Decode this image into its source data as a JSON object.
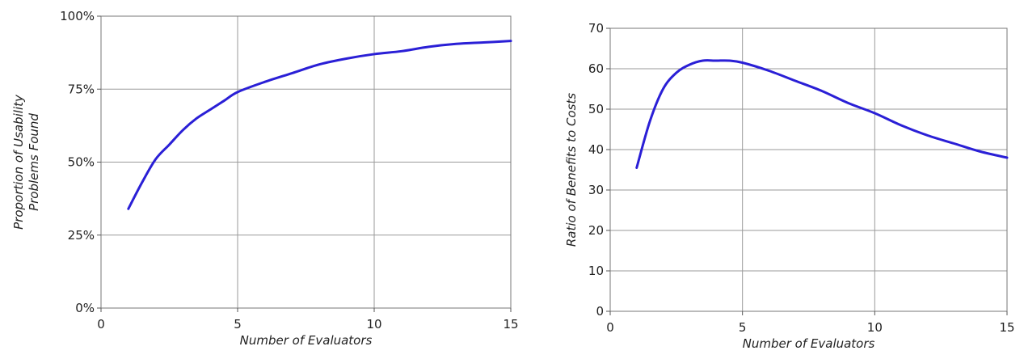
{
  "chart_data": [
    {
      "type": "line",
      "xlabel": "Number of Evaluators",
      "ylabel_lines": [
        "Proportion of Usability",
        "Problems Found"
      ],
      "xlim": [
        0,
        15
      ],
      "ylim": [
        0,
        100
      ],
      "xticks": [
        0,
        5,
        10,
        15
      ],
      "yticks": [
        0,
        25,
        50,
        75,
        100
      ],
      "ytick_labels": [
        "0%",
        "25%",
        "50%",
        "75%",
        "100%"
      ],
      "grid": true,
      "series": [
        {
          "color": "#2a1fd6",
          "x": [
            1,
            1.5,
            2,
            2.5,
            3,
            3.5,
            4,
            4.5,
            5,
            6,
            7,
            8,
            9,
            10,
            11,
            12,
            13,
            14,
            15
          ],
          "y": [
            34,
            43,
            51,
            56,
            61,
            65,
            68,
            71,
            74,
            77.5,
            80.5,
            83.5,
            85.5,
            87,
            88,
            89.5,
            90.5,
            91,
            91.5
          ]
        }
      ]
    },
    {
      "type": "line",
      "xlabel": "Number of Evaluators",
      "ylabel_lines": [
        "Ratio of Benefits to Costs"
      ],
      "xlim": [
        0,
        15
      ],
      "ylim": [
        0,
        70
      ],
      "xticks": [
        0,
        5,
        10,
        15
      ],
      "yticks": [
        0,
        10,
        20,
        30,
        40,
        50,
        60,
        70
      ],
      "ytick_labels": [
        "0",
        "10",
        "20",
        "30",
        "40",
        "50",
        "60",
        "70"
      ],
      "grid": true,
      "series": [
        {
          "color": "#2a1fd6",
          "x": [
            1,
            1.5,
            2,
            2.5,
            3,
            3.5,
            4,
            4.5,
            5,
            6,
            7,
            8,
            9,
            10,
            11,
            12,
            13,
            14,
            15
          ],
          "y": [
            35.5,
            47,
            55,
            59,
            61,
            62,
            62,
            62,
            61.5,
            59.5,
            57,
            54.5,
            51.5,
            49,
            46,
            43.5,
            41.5,
            39.5,
            38
          ]
        }
      ]
    }
  ]
}
